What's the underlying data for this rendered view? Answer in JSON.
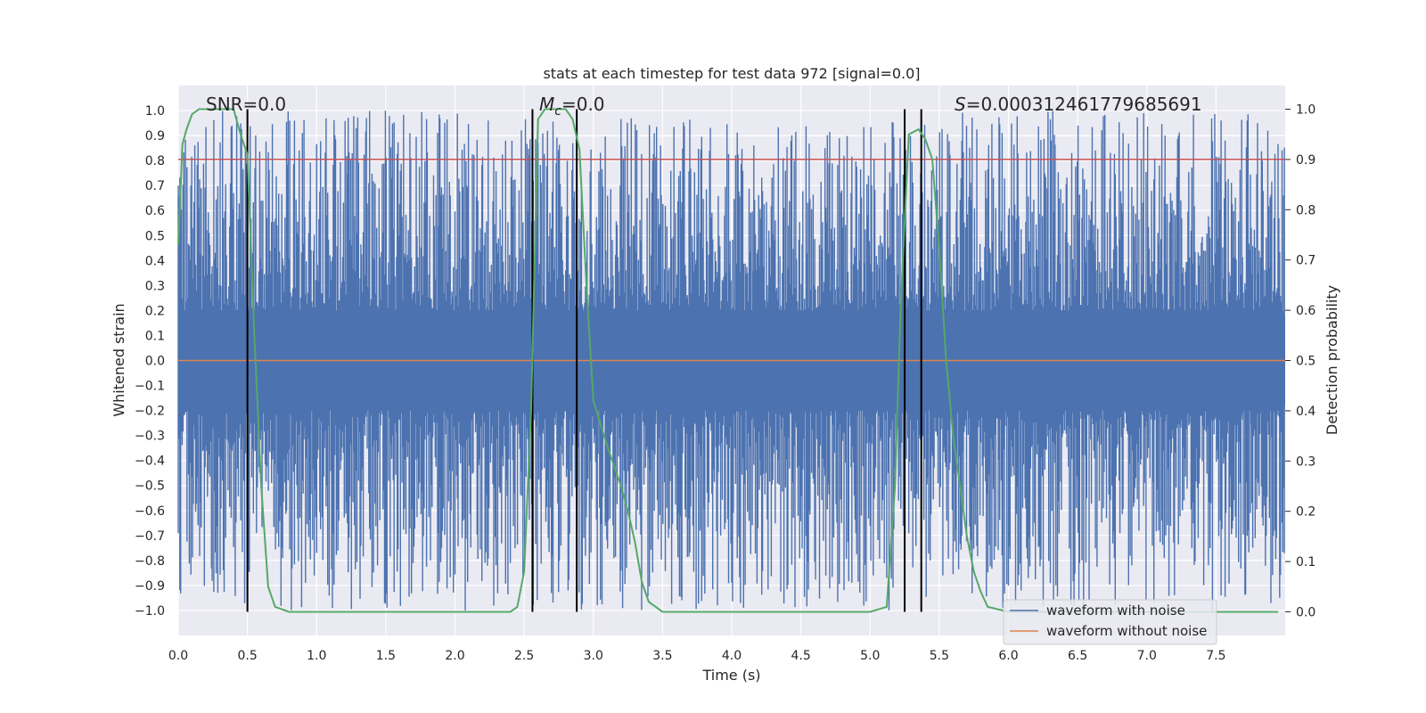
{
  "chart_data": {
    "type": "line",
    "title": "stats at each timestep for test data 972 [signal=0.0]",
    "xlabel": "Time (s)",
    "ylabel": "Whitened strain",
    "y2label": "Detection probability",
    "xlim": [
      0.0,
      8.0
    ],
    "ylim": [
      -1.1,
      1.1
    ],
    "y2lim": [
      -0.047,
      1.047
    ],
    "x_ticks": [
      0.0,
      0.5,
      1.0,
      1.5,
      2.0,
      2.5,
      3.0,
      3.5,
      4.0,
      4.5,
      5.0,
      5.5,
      6.0,
      6.5,
      7.0,
      7.5
    ],
    "y_ticks": [
      -1.0,
      -0.9,
      -0.8,
      -0.7,
      -0.6,
      -0.5,
      -0.4,
      -0.3,
      -0.2,
      -0.1,
      0.0,
      0.1,
      0.2,
      0.3,
      0.4,
      0.5,
      0.6,
      0.7,
      0.8,
      0.9,
      1.0
    ],
    "y2_ticks": [
      0.0,
      0.1,
      0.2,
      0.3,
      0.4,
      0.5,
      0.6,
      0.7,
      0.8,
      0.9,
      1.0
    ],
    "annotations": {
      "snr": "SNR=0.0",
      "mc_symbol": "M",
      "mc_sub": "c",
      "mc_value": "=0.0",
      "s_symbol": "S",
      "s_value": "=0.000312461779685691"
    },
    "legend": {
      "location": "lower-right",
      "entries": [
        "waveform with noise",
        "waveform without noise"
      ]
    },
    "series": [
      {
        "name": "waveform with noise",
        "color": "#4c72b0",
        "axis": "left",
        "kind": "noise",
        "note": "whitened noise, roughly bounded in [-1, 1]"
      },
      {
        "name": "waveform without noise",
        "color": "#dd8452",
        "axis": "left",
        "value": 0.0
      },
      {
        "name": "detection probability",
        "color": "#55a868",
        "axis": "right",
        "x": [
          0.0,
          0.03,
          0.06,
          0.1,
          0.15,
          0.2,
          0.3,
          0.4,
          0.45,
          0.5,
          0.55,
          0.6,
          0.65,
          0.7,
          0.8,
          1.0,
          2.0,
          2.4,
          2.45,
          2.5,
          2.55,
          2.6,
          2.65,
          2.7,
          2.8,
          2.85,
          2.9,
          2.95,
          3.0,
          3.1,
          3.2,
          3.25,
          3.3,
          3.35,
          3.4,
          3.5,
          4.0,
          5.0,
          5.12,
          5.18,
          5.22,
          5.28,
          5.35,
          5.4,
          5.45,
          5.5,
          5.55,
          5.6,
          5.65,
          5.7,
          5.75,
          5.8,
          5.85,
          6.0,
          7.0,
          7.95
        ],
        "values": [
          0.73,
          0.93,
          0.96,
          0.99,
          1.0,
          1.0,
          1.0,
          1.0,
          0.95,
          0.91,
          0.55,
          0.25,
          0.05,
          0.01,
          0.0,
          0.0,
          0.0,
          0.0,
          0.01,
          0.08,
          0.4,
          0.98,
          1.0,
          1.0,
          1.0,
          0.98,
          0.92,
          0.65,
          0.42,
          0.33,
          0.25,
          0.2,
          0.14,
          0.06,
          0.02,
          0.0,
          0.0,
          0.0,
          0.01,
          0.25,
          0.6,
          0.95,
          0.96,
          0.94,
          0.9,
          0.72,
          0.5,
          0.35,
          0.25,
          0.15,
          0.08,
          0.04,
          0.01,
          0.0,
          0.0,
          0.0
        ]
      },
      {
        "name": "threshold",
        "color": "#c44e52",
        "axis": "right",
        "value": 0.9
      }
    ],
    "vlines": [
      0.5,
      2.56,
      2.88,
      5.25,
      5.37
    ]
  }
}
